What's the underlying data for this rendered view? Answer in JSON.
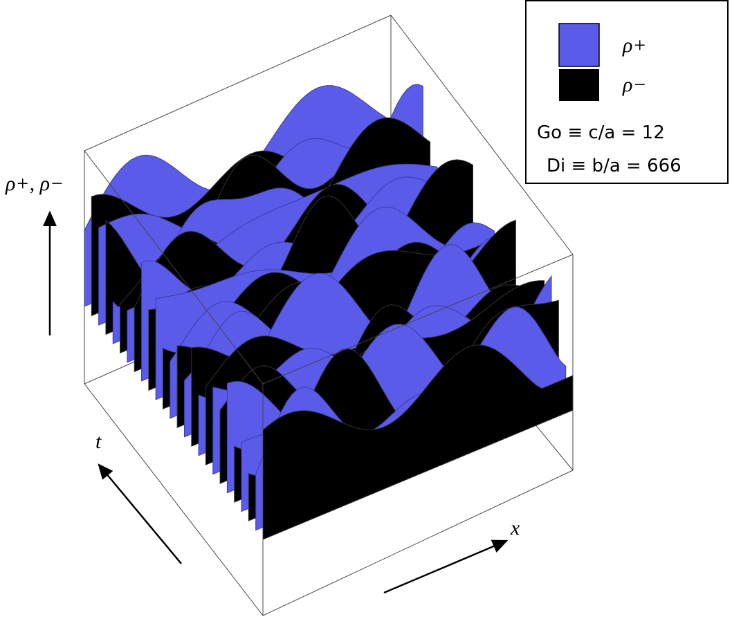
{
  "legend": {
    "items": [
      {
        "label": "ρ+",
        "color": "#5b5bea"
      },
      {
        "label": "ρ−",
        "color": "#000000"
      }
    ],
    "params": [
      "Go ≡ c/a = 12",
      "Di ≡ b/a = 666"
    ]
  },
  "axes": {
    "vertical": "ρ+, ρ−",
    "t": "t",
    "x": "x"
  }
}
